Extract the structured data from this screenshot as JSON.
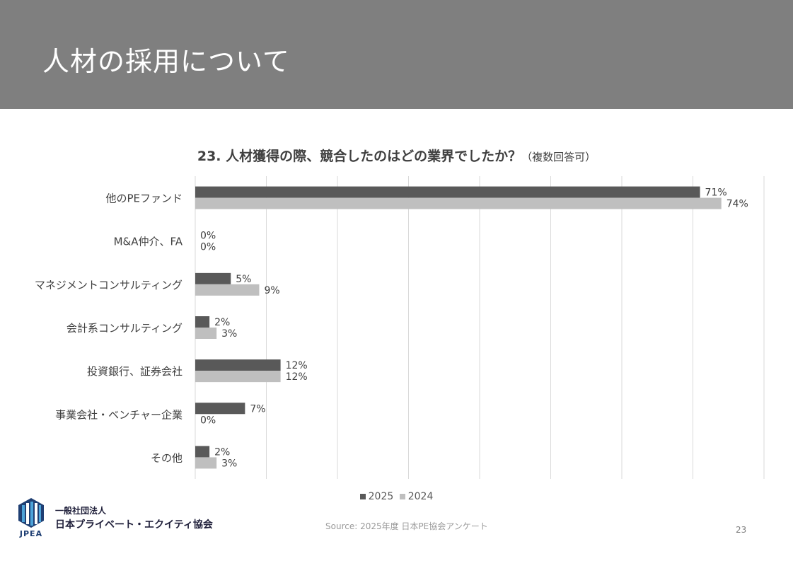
{
  "header": {
    "title": "人材の採用について"
  },
  "chart_data": {
    "type": "bar",
    "orientation": "horizontal",
    "title": "23. 人材獲得の際、競合したのはどの業界でしたか？",
    "title_note": "（複数回答可）",
    "categories": [
      "他のPEファンド",
      "M&A仲介、FA",
      "マネジメントコンサルティング",
      "会計系コンサルティング",
      "投資銀行、証券会社",
      "事業会社・ベンチャー企業",
      "その他"
    ],
    "series": [
      {
        "name": "2025",
        "color": "#595959",
        "values": [
          71,
          0,
          5,
          2,
          12,
          7,
          2
        ]
      },
      {
        "name": "2024",
        "color": "#bfbfbf",
        "values": [
          74,
          0,
          9,
          3,
          12,
          0,
          3
        ]
      }
    ],
    "value_suffix": "%",
    "xlim": [
      0,
      80
    ],
    "grid": true,
    "legend_position": "bottom"
  },
  "footer": {
    "org_line1": "一般社団法人",
    "org_line2": "日本プライベート・エクイティ協会",
    "logo_text": "JPEA",
    "source": "Source: 2025年度 日本PE協会アンケート",
    "page_number": "23"
  }
}
